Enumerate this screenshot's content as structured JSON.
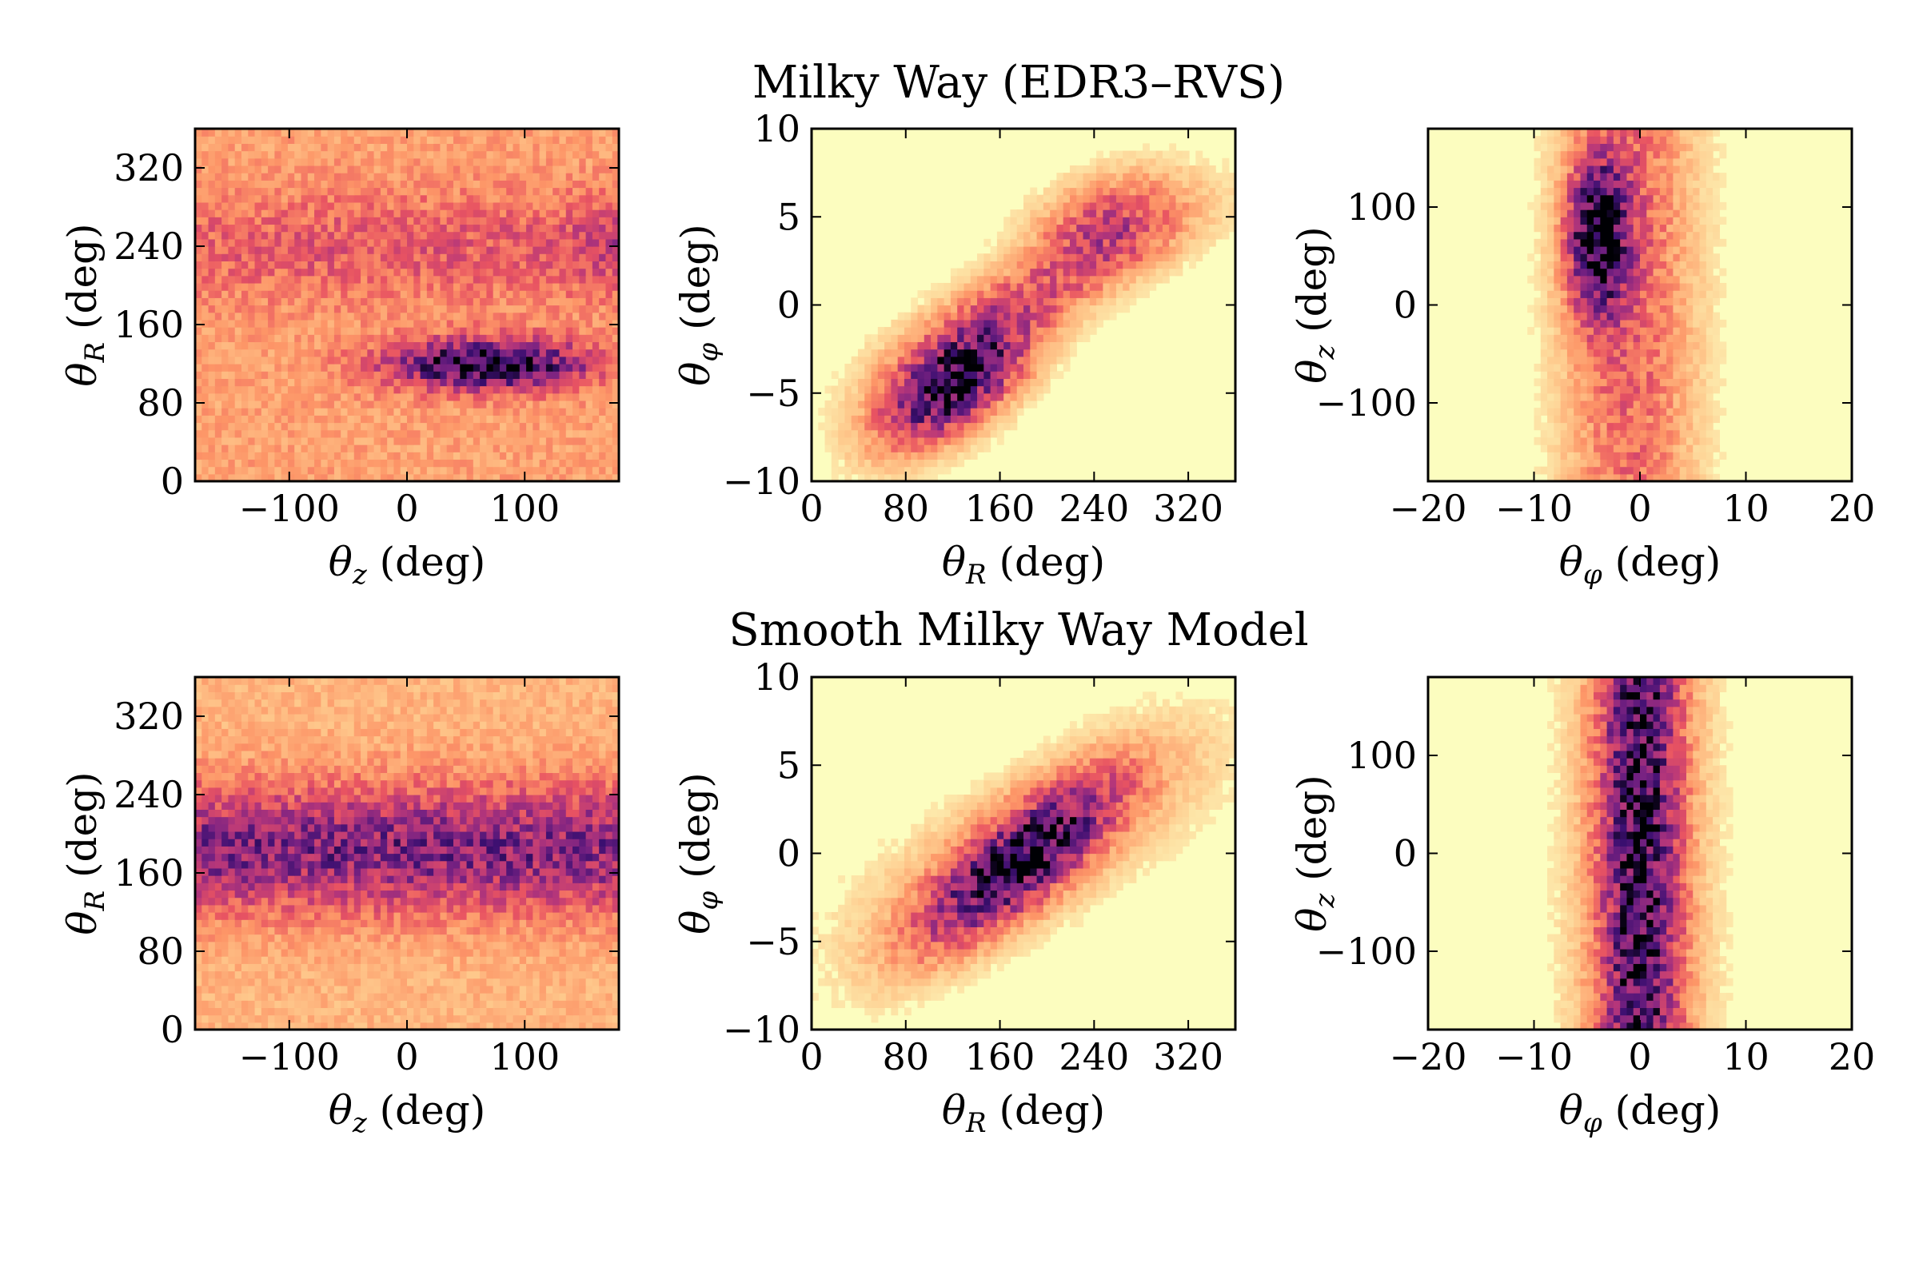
{
  "colors": {
    "colormap": [
      "#fcfdbf",
      "#feca8d",
      "#fd9567",
      "#e85362",
      "#b5367a",
      "#792282",
      "#3b0f70",
      "#000004"
    ],
    "frame": "#000000",
    "background": "#ffffff"
  },
  "rows": [
    {
      "title": "Milky Way (EDR3–RVS)"
    },
    {
      "title": "Smooth Milky Way Model"
    }
  ],
  "chart_data": [
    {
      "type": "heatmap",
      "row": 0,
      "col": 0,
      "title": "Milky Way (EDR3–RVS)",
      "xlabel": "θz (deg)",
      "ylabel": "θR (deg)",
      "xlim": [
        -180,
        180
      ],
      "ylim": [
        0,
        360
      ],
      "xticks": [
        -100,
        0,
        100
      ],
      "xtick_labels": [
        "−100",
        "0",
        "100"
      ],
      "yticks": [
        0,
        80,
        160,
        240,
        320
      ],
      "ytick_labels": [
        "0",
        "80",
        "160",
        "240",
        "320"
      ],
      "background_density": 0.25,
      "noise": 0.18,
      "features": [
        {
          "x": 70,
          "y": 120,
          "sx": 60,
          "sy": 18,
          "corr": 0,
          "amp": 0.75
        },
        {
          "x": 0,
          "y": 240,
          "sx": 300,
          "sy": 40,
          "corr": 0,
          "amp": 0.18
        },
        {
          "x": 180,
          "y": 245,
          "sx": 30,
          "sy": 30,
          "corr": 0,
          "amp": 0.15
        }
      ]
    },
    {
      "type": "heatmap",
      "row": 0,
      "col": 1,
      "title": "Milky Way (EDR3–RVS)",
      "xlabel": "θR (deg)",
      "ylabel": "θφ (deg)",
      "xlim": [
        0,
        360
      ],
      "ylim": [
        -10,
        10
      ],
      "xticks": [
        0,
        80,
        160,
        240,
        320
      ],
      "xtick_labels": [
        "0",
        "80",
        "160",
        "240",
        "320"
      ],
      "yticks": [
        -10,
        -5,
        0,
        5,
        10
      ],
      "ytick_labels": [
        "−10",
        "−5",
        "0",
        "5",
        "10"
      ],
      "background_density": 0,
      "noise": 0.2,
      "features": [
        {
          "x": 120,
          "y": -4.5,
          "sx": 45,
          "sy": 2.5,
          "corr": 0.6,
          "amp": 0.95
        },
        {
          "x": 200,
          "y": 1.0,
          "sx": 90,
          "sy": 3.2,
          "corr": 0.85,
          "amp": 0.35
        },
        {
          "x": 250,
          "y": 5.0,
          "sx": 45,
          "sy": 2.0,
          "corr": 0.4,
          "amp": 0.4
        }
      ]
    },
    {
      "type": "heatmap",
      "row": 0,
      "col": 2,
      "title": "Milky Way (EDR3–RVS)",
      "xlabel": "θφ (deg)",
      "ylabel": "θz (deg)",
      "xlim": [
        -20,
        20
      ],
      "ylim": [
        -180,
        180
      ],
      "xticks": [
        -20,
        -10,
        0,
        10,
        20
      ],
      "xtick_labels": [
        "−20",
        "−10",
        "0",
        "10",
        "20"
      ],
      "yticks": [
        -100,
        0,
        100
      ],
      "ytick_labels": [
        "−100",
        "0",
        "100"
      ],
      "background_density": 0,
      "noise": 0.2,
      "features": [
        {
          "x": -4,
          "y": 70,
          "sx": 2.0,
          "sy": 55,
          "corr": 0,
          "amp": 0.8
        },
        {
          "x": -1,
          "y": 0,
          "sx": 4.5,
          "sy": 400,
          "corr": 0,
          "amp": 0.4
        }
      ]
    },
    {
      "type": "heatmap",
      "row": 1,
      "col": 0,
      "title": "Smooth Milky Way Model",
      "xlabel": "θz (deg)",
      "ylabel": "θR (deg)",
      "xlim": [
        -180,
        180
      ],
      "ylim": [
        0,
        360
      ],
      "xticks": [
        -100,
        0,
        100
      ],
      "xtick_labels": [
        "−100",
        "0",
        "100"
      ],
      "yticks": [
        0,
        80,
        160,
        240,
        320
      ],
      "ytick_labels": [
        "0",
        "80",
        "160",
        "240",
        "320"
      ],
      "background_density": 0.2,
      "noise": 0.18,
      "features": [
        {
          "x": 0,
          "y": 185,
          "sx": 600,
          "sy": 45,
          "corr": 0,
          "amp": 0.5
        }
      ]
    },
    {
      "type": "heatmap",
      "row": 1,
      "col": 1,
      "title": "Smooth Milky Way Model",
      "xlabel": "θR (deg)",
      "ylabel": "θφ (deg)",
      "xlim": [
        0,
        360
      ],
      "ylim": [
        -10,
        10
      ],
      "xticks": [
        0,
        80,
        160,
        240,
        320
      ],
      "xtick_labels": [
        "0",
        "80",
        "160",
        "240",
        "320"
      ],
      "yticks": [
        -10,
        -5,
        0,
        5,
        10
      ],
      "ytick_labels": [
        "−10",
        "−5",
        "0",
        "5",
        "10"
      ],
      "background_density": 0,
      "noise": 0.2,
      "features": [
        {
          "x": 175,
          "y": -0.5,
          "sx": 60,
          "sy": 3.5,
          "corr": 0.8,
          "amp": 0.75
        },
        {
          "x": 190,
          "y": 0.5,
          "sx": 110,
          "sy": 4.5,
          "corr": 0.75,
          "amp": 0.25
        }
      ]
    },
    {
      "type": "heatmap",
      "row": 1,
      "col": 2,
      "title": "Smooth Milky Way Model",
      "xlabel": "θφ (deg)",
      "ylabel": "θz (deg)",
      "xlim": [
        -20,
        20
      ],
      "ylim": [
        -180,
        180
      ],
      "xticks": [
        -20,
        -10,
        0,
        10,
        20
      ],
      "xtick_labels": [
        "−20",
        "−10",
        "0",
        "10",
        "20"
      ],
      "yticks": [
        -100,
        0,
        100
      ],
      "ytick_labels": [
        "−100",
        "0",
        "100"
      ],
      "background_density": 0,
      "noise": 0.2,
      "features": [
        {
          "x": 0,
          "y": 0,
          "sx": 2.8,
          "sy": 600,
          "corr": 0,
          "amp": 0.7
        },
        {
          "x": 0,
          "y": 0,
          "sx": 5.0,
          "sy": 600,
          "corr": 0,
          "amp": 0.2
        }
      ]
    }
  ]
}
